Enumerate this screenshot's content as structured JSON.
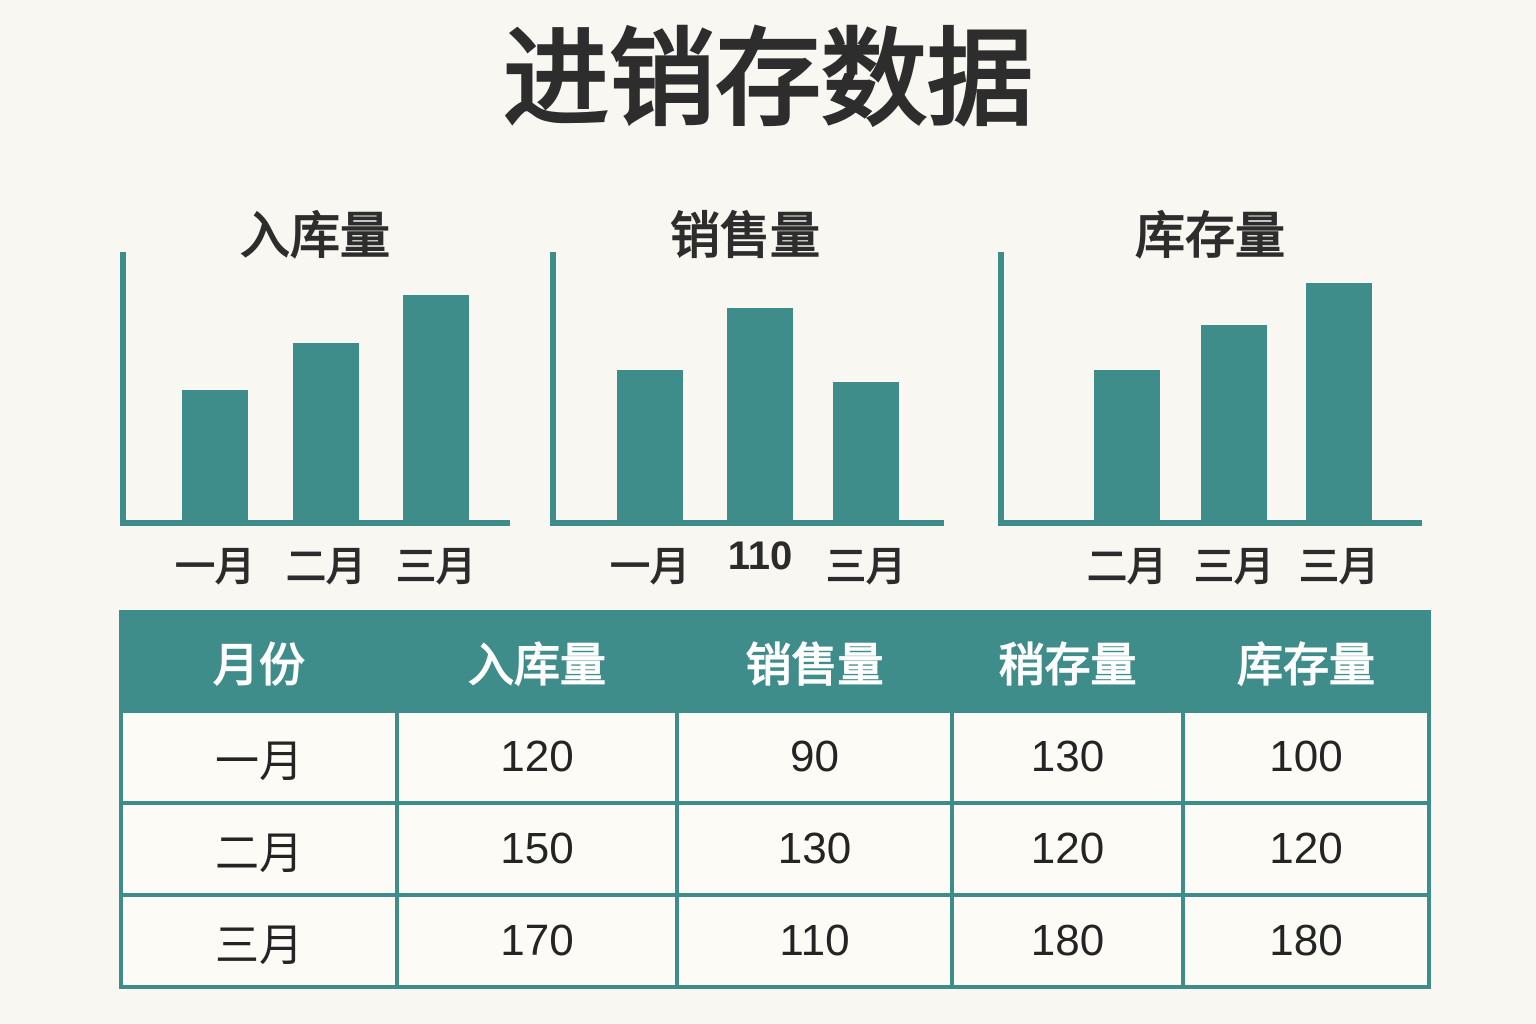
{
  "title": "进销存数据",
  "colors": {
    "teal": "#3F8D8A",
    "background": "#F9F7F1",
    "cell_background": "#FCFBF6",
    "header_text": "#FFFFFF",
    "text": "#2B2B2B"
  },
  "chart_data": [
    {
      "type": "bar",
      "title": "入库量",
      "categories": [
        "一月",
        "二月",
        "三月"
      ],
      "values": [
        130,
        177,
        225
      ],
      "units": "relative bar height px",
      "y_axis": "unlabeled, no ticks or gridlines",
      "legend": "none"
    },
    {
      "type": "bar",
      "title": "销售量",
      "categories": [
        "一月",
        "110",
        "三月"
      ],
      "values": [
        150,
        212,
        138
      ],
      "units": "relative bar height px",
      "y_axis": "unlabeled, no ticks or gridlines",
      "legend": "none"
    },
    {
      "type": "bar",
      "title": "库存量",
      "categories": [
        "二月",
        "三月",
        "三月"
      ],
      "values": [
        150,
        195,
        237
      ],
      "units": "relative bar height px",
      "y_axis": "unlabeled, no ticks or gridlines",
      "legend": "none"
    },
    {
      "type": "table",
      "headers": [
        "月份",
        "入库量",
        "销售量",
        "稍存量",
        "库存量"
      ],
      "rows": [
        [
          "一月",
          "120",
          "90",
          "130",
          "100"
        ],
        [
          "二月",
          "150",
          "130",
          "120",
          "120"
        ],
        [
          "三月",
          "170",
          "110",
          "180",
          "180"
        ]
      ]
    }
  ]
}
